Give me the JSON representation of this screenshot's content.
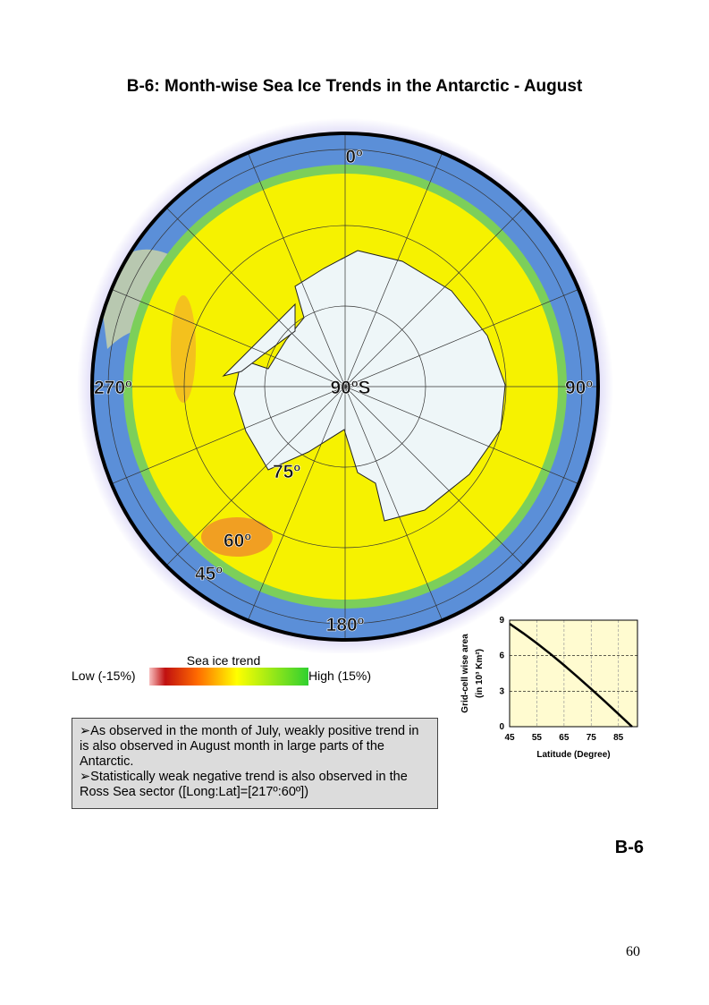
{
  "header": {
    "title": "B-6: Month-wise Sea Ice Trends in the Antarctic - August"
  },
  "map": {
    "labels": {
      "north": "0º",
      "center": "90ºS",
      "west": "270º",
      "east": "90º",
      "south": "180º",
      "lat75": "75º",
      "lat60": "60º",
      "lat45": "45º"
    }
  },
  "legend": {
    "title": "Sea ice trend",
    "low": "Low (-15%)",
    "high": "High (15%)"
  },
  "notes": [
    "➢As observed in the month of July, weakly positive trend in is also observed in August month in large parts of the Antarctic.",
    "➢Statistically weak negative trend is also observed in the Ross Sea sector ([Long:Lat]=[217º:60º])"
  ],
  "chart_data": {
    "type": "line",
    "x_label": "Latitude (Degree)",
    "y_label": "Grid-cell wise area",
    "y_label_units": "(in 10³ Km²)",
    "x": [
      45,
      50,
      55,
      60,
      65,
      70,
      75,
      80,
      85,
      90
    ],
    "series": [
      {
        "color": "#000000",
        "values": [
          8.7,
          7.9,
          7.05,
          6.15,
          5.2,
          4.2,
          3.18,
          2.14,
          1.07,
          0
        ]
      }
    ],
    "xlim": [
      45,
      92
    ],
    "xticks": [
      45,
      55,
      65,
      75,
      85
    ],
    "ylim": [
      0,
      9
    ],
    "yticks": [
      0,
      3,
      6,
      9
    ],
    "grid": true,
    "background": "#fffbd0"
  },
  "footer": {
    "section": "B-6",
    "page": "60"
  }
}
